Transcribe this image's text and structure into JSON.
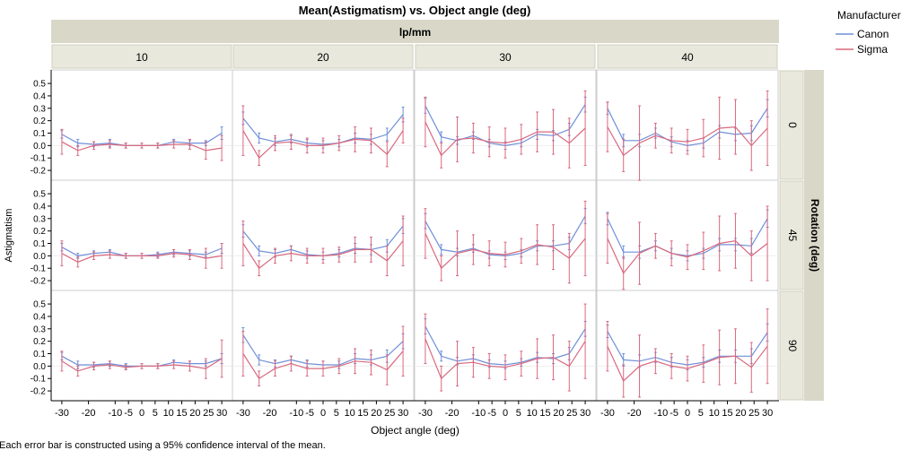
{
  "chart_data": {
    "type": "line",
    "title": "Mean(Astigmatism) vs. Object angle (deg)",
    "xlabel": "Object angle (deg)",
    "ylabel": "Astigmatism",
    "column_group_label": "lp/mm",
    "row_group_label": "Rotation (deg)",
    "columns": [
      "10",
      "20",
      "30",
      "40"
    ],
    "rows": [
      "0",
      "45",
      "90"
    ],
    "x": [
      -30,
      -24,
      -18,
      -12,
      -6,
      0,
      6,
      12,
      18,
      24,
      30
    ],
    "x_ticks": [
      {
        "value": -30,
        "label": "-30"
      },
      {
        "value": -20,
        "label": "-20"
      },
      {
        "value": -10,
        "label": "-10"
      },
      {
        "value": -5,
        "label": "-5"
      },
      {
        "value": 0,
        "label": "0"
      },
      {
        "value": 5,
        "label": "5"
      },
      {
        "value": 10,
        "label": "10"
      },
      {
        "value": 15,
        "label": "15"
      },
      {
        "value": 20,
        "label": "20"
      },
      {
        "value": 25,
        "label": "25"
      },
      {
        "value": 30,
        "label": "30"
      }
    ],
    "xlim": [
      -33,
      33
    ],
    "y_ticks": [
      -0.2,
      -0.1,
      0.0,
      0.1,
      0.2,
      0.3,
      0.4,
      0.5
    ],
    "y_tick_labels": [
      "-0.2",
      "-0.1",
      "0.0",
      "0.1",
      "0.2",
      "0.3",
      "0.4",
      "0.5"
    ],
    "ylim": [
      -0.25,
      0.58
    ],
    "legend": {
      "title": "Manufacturer",
      "position": "top-right",
      "entries": [
        {
          "name": "Canon",
          "color": "#6f8fd8"
        },
        {
          "name": "Sigma",
          "color": "#d8697f"
        }
      ]
    },
    "footnote": "Each error bar is constructed using a 95% confidence interval of the mean.",
    "panels": [
      {
        "row": "0",
        "col": "10",
        "series": [
          {
            "name": "Canon",
            "mean": [
              0.09,
              0.02,
              0.01,
              0.02,
              0.0,
              0.0,
              0.0,
              0.03,
              0.02,
              0.02,
              0.1
            ],
            "err": [
              0.03,
              0.03,
              0.02,
              0.03,
              0.02,
              0.02,
              0.02,
              0.02,
              0.02,
              0.02,
              0.05
            ]
          },
          {
            "name": "Sigma",
            "mean": [
              0.03,
              -0.04,
              0.0,
              0.01,
              0.0,
              0.0,
              0.0,
              0.01,
              0.01,
              -0.04,
              -0.02
            ],
            "err": [
              0.1,
              0.04,
              0.03,
              0.03,
              0.02,
              0.02,
              0.02,
              0.03,
              0.04,
              0.07,
              0.1
            ]
          }
        ]
      },
      {
        "row": "0",
        "col": "20",
        "series": [
          {
            "name": "Canon",
            "mean": [
              0.22,
              0.06,
              0.03,
              0.05,
              0.02,
              0.01,
              0.02,
              0.06,
              0.05,
              0.09,
              0.25
            ],
            "err": [
              0.05,
              0.04,
              0.03,
              0.03,
              0.03,
              0.03,
              0.03,
              0.04,
              0.04,
              0.05,
              0.06
            ]
          },
          {
            "name": "Sigma",
            "mean": [
              0.12,
              -0.1,
              0.02,
              0.03,
              0.0,
              0.0,
              0.02,
              0.05,
              0.04,
              -0.07,
              0.12
            ],
            "err": [
              0.2,
              0.06,
              0.06,
              0.06,
              0.06,
              0.06,
              0.06,
              0.1,
              0.1,
              0.1,
              0.1
            ]
          }
        ]
      },
      {
        "row": "0",
        "col": "30",
        "series": [
          {
            "name": "Canon",
            "mean": [
              0.32,
              0.07,
              0.04,
              0.08,
              0.02,
              0.0,
              0.02,
              0.09,
              0.08,
              0.13,
              0.33
            ],
            "err": [
              0.06,
              0.04,
              0.03,
              0.03,
              0.03,
              0.03,
              0.03,
              0.04,
              0.04,
              0.05,
              0.06
            ]
          },
          {
            "name": "Sigma",
            "mean": [
              0.19,
              -0.08,
              0.05,
              0.06,
              0.03,
              0.02,
              0.05,
              0.11,
              0.11,
              0.02,
              0.14
            ],
            "err": [
              0.2,
              0.1,
              0.18,
              0.12,
              0.12,
              0.12,
              0.12,
              0.16,
              0.18,
              0.2,
              0.3
            ]
          }
        ]
      },
      {
        "row": "0",
        "col": "40",
        "series": [
          {
            "name": "Canon",
            "mean": [
              0.3,
              0.04,
              0.04,
              0.1,
              0.03,
              0.0,
              0.02,
              0.11,
              0.09,
              0.1,
              0.3
            ],
            "err": [
              0.05,
              0.05,
              0.05,
              0.04,
              0.04,
              0.04,
              0.04,
              0.05,
              0.05,
              0.06,
              0.07
            ]
          },
          {
            "name": "Sigma",
            "mean": [
              0.15,
              -0.08,
              0.02,
              0.08,
              0.04,
              0.03,
              0.06,
              0.14,
              0.15,
              0.0,
              0.14
            ],
            "err": [
              0.2,
              0.13,
              0.3,
              0.1,
              0.1,
              0.1,
              0.15,
              0.25,
              0.22,
              0.2,
              0.3
            ]
          }
        ]
      },
      {
        "row": "45",
        "col": "10",
        "series": [
          {
            "name": "Canon",
            "mean": [
              0.07,
              0.0,
              0.02,
              0.03,
              0.0,
              0.0,
              0.01,
              0.03,
              0.02,
              0.01,
              0.06
            ],
            "err": [
              0.03,
              0.02,
              0.02,
              0.02,
              0.02,
              0.02,
              0.02,
              0.02,
              0.02,
              0.02,
              0.04
            ]
          },
          {
            "name": "Sigma",
            "mean": [
              0.02,
              -0.05,
              0.0,
              0.01,
              0.0,
              0.0,
              0.0,
              0.02,
              0.01,
              -0.02,
              0.0
            ],
            "err": [
              0.1,
              0.04,
              0.03,
              0.03,
              0.02,
              0.02,
              0.02,
              0.03,
              0.04,
              0.08,
              0.1
            ]
          }
        ]
      },
      {
        "row": "45",
        "col": "20",
        "series": [
          {
            "name": "Canon",
            "mean": [
              0.2,
              0.04,
              0.02,
              0.05,
              0.01,
              0.0,
              0.02,
              0.06,
              0.05,
              0.08,
              0.24
            ],
            "err": [
              0.05,
              0.04,
              0.03,
              0.03,
              0.03,
              0.03,
              0.03,
              0.04,
              0.04,
              0.05,
              0.06
            ]
          },
          {
            "name": "Sigma",
            "mean": [
              0.1,
              -0.1,
              0.0,
              0.02,
              0.0,
              0.0,
              0.01,
              0.05,
              0.05,
              -0.04,
              0.12
            ],
            "err": [
              0.18,
              0.06,
              0.06,
              0.06,
              0.06,
              0.06,
              0.06,
              0.1,
              0.1,
              0.12,
              0.2
            ]
          }
        ]
      },
      {
        "row": "45",
        "col": "30",
        "series": [
          {
            "name": "Canon",
            "mean": [
              0.28,
              0.05,
              0.03,
              0.06,
              0.01,
              0.0,
              0.02,
              0.08,
              0.08,
              0.1,
              0.32
            ],
            "err": [
              0.06,
              0.04,
              0.03,
              0.03,
              0.03,
              0.03,
              0.03,
              0.04,
              0.04,
              0.05,
              0.06
            ]
          },
          {
            "name": "Sigma",
            "mean": [
              0.18,
              -0.1,
              0.02,
              0.05,
              0.02,
              0.01,
              0.04,
              0.09,
              0.07,
              -0.02,
              0.14
            ],
            "err": [
              0.2,
              0.1,
              0.18,
              0.12,
              0.1,
              0.1,
              0.1,
              0.16,
              0.18,
              0.2,
              0.3
            ]
          }
        ]
      },
      {
        "row": "45",
        "col": "40",
        "series": [
          {
            "name": "Canon",
            "mean": [
              0.3,
              0.03,
              0.03,
              0.08,
              0.02,
              0.0,
              0.02,
              0.09,
              0.09,
              0.08,
              0.3
            ],
            "err": [
              0.05,
              0.05,
              0.05,
              0.04,
              0.04,
              0.04,
              0.04,
              0.05,
              0.05,
              0.06,
              0.07
            ]
          },
          {
            "name": "Sigma",
            "mean": [
              0.14,
              -0.14,
              0.02,
              0.08,
              0.02,
              -0.01,
              0.04,
              0.1,
              0.12,
              0.0,
              0.1
            ],
            "err": [
              0.2,
              0.13,
              0.25,
              0.1,
              0.1,
              0.1,
              0.15,
              0.22,
              0.22,
              0.2,
              0.3
            ]
          }
        ]
      },
      {
        "row": "90",
        "col": "10",
        "series": [
          {
            "name": "Canon",
            "mean": [
              0.08,
              0.01,
              0.01,
              0.02,
              0.0,
              0.0,
              0.0,
              0.03,
              0.02,
              0.02,
              0.06
            ],
            "err": [
              0.03,
              0.03,
              0.02,
              0.02,
              0.02,
              0.02,
              0.02,
              0.02,
              0.02,
              0.02,
              0.04
            ]
          },
          {
            "name": "Sigma",
            "mean": [
              0.04,
              -0.04,
              0.0,
              0.01,
              -0.01,
              0.0,
              0.0,
              0.01,
              0.0,
              -0.02,
              0.06
            ],
            "err": [
              0.08,
              0.04,
              0.03,
              0.03,
              0.02,
              0.02,
              0.02,
              0.03,
              0.04,
              0.08,
              0.15
            ]
          }
        ]
      },
      {
        "row": "90",
        "col": "20",
        "series": [
          {
            "name": "Canon",
            "mean": [
              0.25,
              0.05,
              0.02,
              0.05,
              0.02,
              0.01,
              0.01,
              0.06,
              0.05,
              0.08,
              0.2
            ],
            "err": [
              0.06,
              0.04,
              0.03,
              0.03,
              0.03,
              0.03,
              0.03,
              0.04,
              0.04,
              0.05,
              0.06
            ]
          },
          {
            "name": "Sigma",
            "mean": [
              0.1,
              -0.1,
              -0.02,
              0.02,
              -0.02,
              -0.02,
              0.0,
              0.04,
              0.03,
              -0.03,
              0.12
            ],
            "err": [
              0.18,
              0.06,
              0.06,
              0.06,
              0.06,
              0.06,
              0.06,
              0.1,
              0.1,
              0.12,
              0.2
            ]
          }
        ]
      },
      {
        "row": "90",
        "col": "30",
        "series": [
          {
            "name": "Canon",
            "mean": [
              0.32,
              0.08,
              0.04,
              0.06,
              0.02,
              0.01,
              0.03,
              0.07,
              0.06,
              0.1,
              0.3
            ],
            "err": [
              0.06,
              0.04,
              0.03,
              0.03,
              0.03,
              0.03,
              0.03,
              0.04,
              0.04,
              0.05,
              0.06
            ]
          },
          {
            "name": "Sigma",
            "mean": [
              0.22,
              -0.1,
              0.02,
              0.03,
              0.0,
              -0.01,
              0.02,
              0.06,
              0.07,
              0.0,
              0.2
            ],
            "err": [
              0.2,
              0.1,
              0.18,
              0.12,
              0.1,
              0.1,
              0.1,
              0.16,
              0.18,
              0.2,
              0.3
            ]
          }
        ]
      },
      {
        "row": "90",
        "col": "40",
        "series": [
          {
            "name": "Canon",
            "mean": [
              0.28,
              0.05,
              0.04,
              0.07,
              0.03,
              0.01,
              0.03,
              0.08,
              0.08,
              0.08,
              0.27
            ],
            "err": [
              0.05,
              0.05,
              0.05,
              0.04,
              0.04,
              0.04,
              0.04,
              0.05,
              0.05,
              0.06,
              0.07
            ]
          },
          {
            "name": "Sigma",
            "mean": [
              0.16,
              -0.12,
              0.0,
              0.04,
              0.0,
              -0.02,
              0.02,
              0.07,
              0.08,
              -0.01,
              0.16
            ],
            "err": [
              0.2,
              0.13,
              0.25,
              0.1,
              0.1,
              0.1,
              0.15,
              0.22,
              0.22,
              0.2,
              0.3
            ]
          }
        ]
      }
    ]
  }
}
